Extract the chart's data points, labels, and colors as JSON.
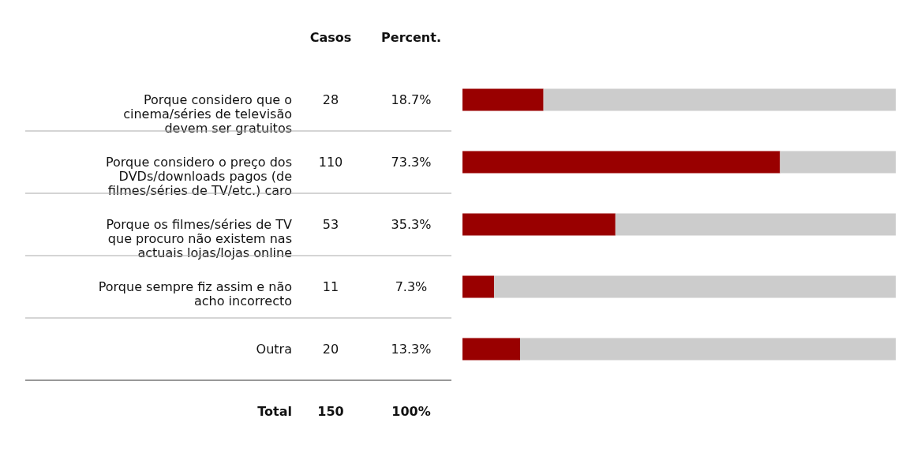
{
  "chart_data": {
    "type": "bar",
    "orientation": "horizontal",
    "stacked": true,
    "categories": [
      "Porque considero que o cinema/séries de televisão devem ser gratuitos",
      "Porque considero o preço dos DVDs/downloads pagos (de filmes/séries de TV/etc.) caro",
      "Porque os filmes/séries de TV que procuro não existem nas actuais lojas/lojas online",
      "Porque sempre fiz assim e não acho incorrecto",
      "Outra"
    ],
    "series": [
      {
        "color": "#990000",
        "values": [
          18.7,
          73.3,
          35.3,
          7.3,
          13.3
        ],
        "value_labels": [
          "18.7%",
          "73.3%",
          "35.3%",
          "7.3%",
          "13.3%"
        ]
      },
      {
        "color": "#cccccc",
        "values": [
          81.3,
          26.7,
          64.7,
          92.7,
          86.7
        ]
      }
    ],
    "xlim": [
      0,
      100
    ],
    "tick_labels": "y",
    "annotations": [
      "Casos",
      "Percent.",
      "28",
      "110",
      "53",
      "11",
      "20",
      "Total",
      "150",
      "100%"
    ]
  }
}
